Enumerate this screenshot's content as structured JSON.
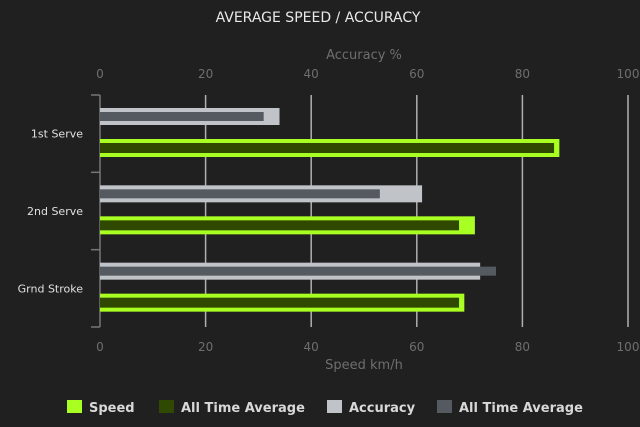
{
  "chart_data": {
    "type": "bar",
    "orientation": "horizontal",
    "title": "AVERAGE SPEED / ACCURACY",
    "top_axis": {
      "label": "Accuracy %",
      "range": [
        0,
        100
      ],
      "ticks": [
        "0",
        "20",
        "40",
        "60",
        "80",
        "100"
      ]
    },
    "bottom_axis": {
      "label": "Speed km/h",
      "range": [
        0,
        100
      ],
      "ticks": [
        "0",
        "20",
        "40",
        "60",
        "80",
        "100"
      ]
    },
    "categories": [
      "1st Serve",
      "2nd Serve",
      "Grnd Stroke"
    ],
    "series": [
      {
        "name": "Speed",
        "axis": "bottom",
        "color": "#aaff22",
        "values": [
          87,
          71,
          69
        ]
      },
      {
        "name": "All Time Average",
        "axis": "bottom",
        "color": "#2f4a00",
        "values": [
          86,
          68,
          68
        ]
      },
      {
        "name": "Accuracy",
        "axis": "top",
        "color": "#c0c4c8",
        "values": [
          34,
          61,
          72
        ]
      },
      {
        "name": "All Time Average",
        "axis": "top",
        "color": "#555a60",
        "values": [
          31,
          53,
          75
        ]
      }
    ],
    "grid": true,
    "legend": "bottom"
  }
}
